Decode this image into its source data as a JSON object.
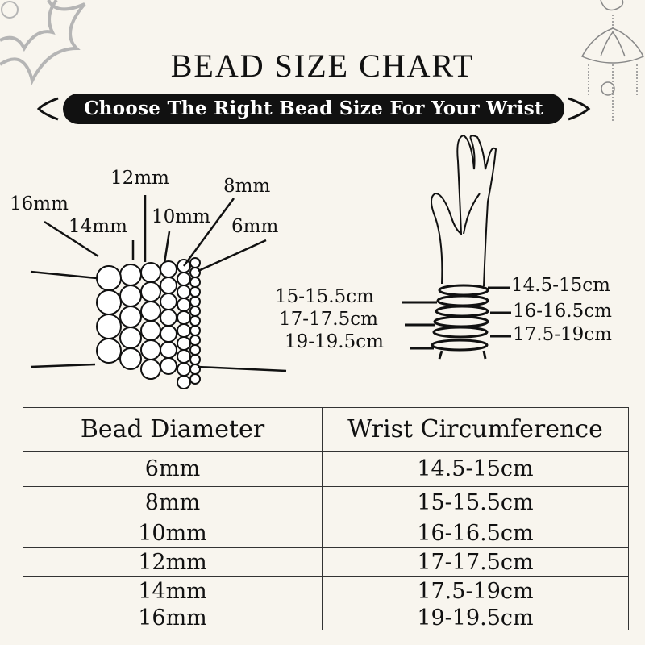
{
  "title": "BEAD SIZE CHART",
  "subtitle": "Choose The Right Bead Size For Your Wrist",
  "bead_labels": [
    "16mm",
    "14mm",
    "12mm",
    "10mm",
    "8mm",
    "6mm"
  ],
  "wrist_labels_left": [
    "15-15.5cm",
    "17-17.5cm",
    "19-19.5cm"
  ],
  "wrist_labels_right": [
    "14.5-15cm",
    "16-16.5cm",
    "17.5-19cm"
  ],
  "table": {
    "headers": [
      "Bead Diameter",
      "Wrist Circumference"
    ],
    "rows": [
      [
        "6mm",
        "14.5-15cm"
      ],
      [
        "8mm",
        "15-15.5cm"
      ],
      [
        "10mm",
        "16-16.5cm"
      ],
      [
        "12mm",
        "17-17.5cm"
      ],
      [
        "14mm",
        "17.5-19cm"
      ],
      [
        "16mm",
        "19-19.5cm"
      ]
    ]
  },
  "colors": {
    "background": "#f8f5ee",
    "ink": "#111111",
    "ornament": "#b5b5b5"
  }
}
